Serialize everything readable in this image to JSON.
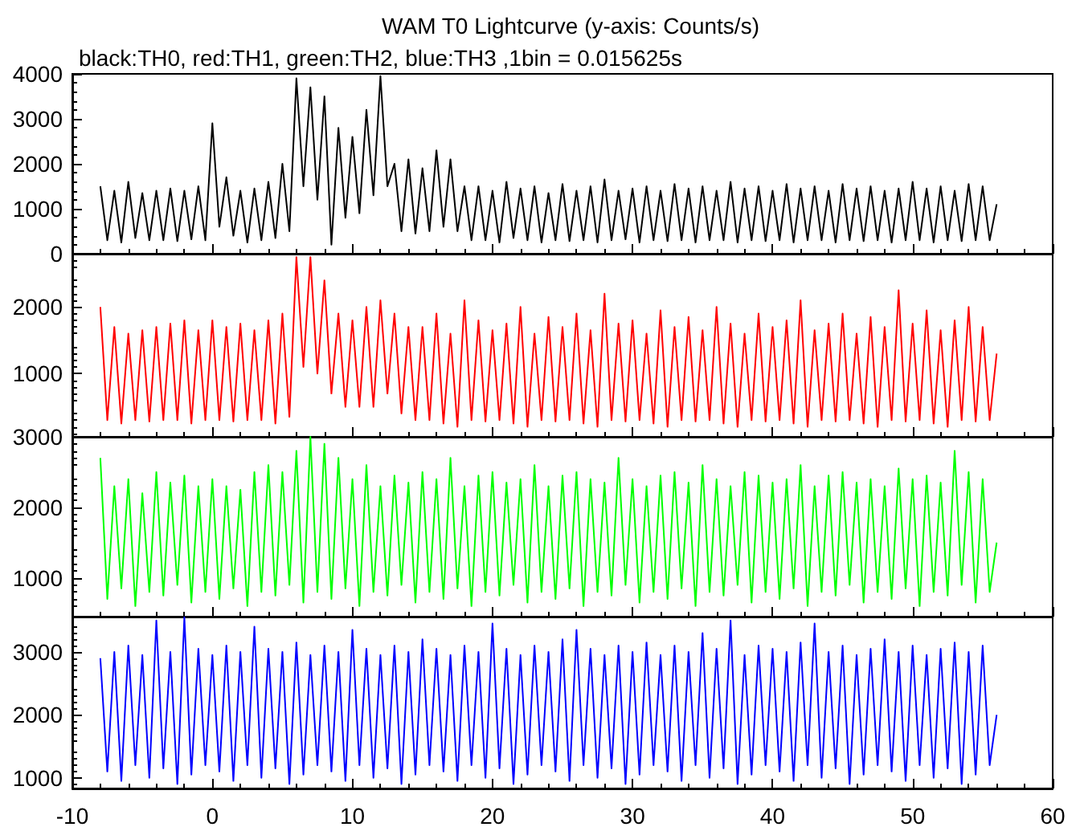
{
  "chart_data": [
    {
      "type": "line",
      "title": "WAM T0 Lightcurve (y-axis: Counts/s)",
      "subtitle": "black:TH0, red:TH1, green:TH2, blue:TH3 ,1bin = 0.015625s",
      "tick_labels": "y",
      "grid": false,
      "marker": "none",
      "x": [
        -8,
        -7.5,
        -7,
        -6.5,
        -6,
        -5.5,
        -5,
        -4.5,
        -4,
        -3.5,
        -3,
        -2.5,
        -2,
        -1.5,
        -1,
        -0.5,
        0,
        0.5,
        1,
        1.5,
        2,
        2.5,
        3,
        3.5,
        4,
        4.5,
        5,
        5.5,
        6,
        6.5,
        7,
        7.5,
        8,
        8.5,
        9,
        9.5,
        10,
        10.5,
        11,
        11.5,
        12,
        12.5,
        13,
        13.5,
        14,
        14.5,
        15,
        15.5,
        16,
        16.5,
        17,
        17.5,
        18,
        18.5,
        19,
        19.5,
        20,
        20.5,
        21,
        21.5,
        22,
        22.5,
        23,
        23.5,
        24,
        24.5,
        25,
        25.5,
        26,
        26.5,
        27,
        27.5,
        28,
        28.5,
        29,
        29.5,
        30,
        30.5,
        31,
        31.5,
        32,
        32.5,
        33,
        33.5,
        34,
        34.5,
        35,
        35.5,
        36,
        36.5,
        37,
        37.5,
        38,
        38.5,
        39,
        39.5,
        40,
        40.5,
        41,
        41.5,
        42,
        42.5,
        43,
        43.5,
        44,
        44.5,
        45,
        45.5,
        46,
        46.5,
        47,
        47.5,
        48,
        48.5,
        49,
        49.5,
        50,
        50.5,
        51,
        51.5,
        52,
        52.5,
        53,
        53.5,
        54,
        54.5,
        55,
        55.5,
        56
      ],
      "xlim": [
        -10,
        60
      ],
      "xticks": [
        -10,
        0,
        10,
        20,
        30,
        40,
        50,
        60
      ],
      "ylim": [
        0,
        4000
      ],
      "yticks": [
        0,
        1000,
        2000,
        3000,
        4000
      ],
      "series": [
        {
          "color": "#000000",
          "values": [
            1500,
            300,
            1400,
            250,
            1600,
            350,
            1350,
            300,
            1400,
            300,
            1450,
            280,
            1400,
            320,
            1500,
            300,
            2900,
            600,
            1700,
            400,
            1400,
            250,
            1450,
            300,
            1600,
            350,
            2000,
            500,
            3900,
            1500,
            3700,
            1200,
            3500,
            200,
            2800,
            800,
            2600,
            900,
            3200,
            1300,
            3950,
            1500,
            2000,
            500,
            2100,
            450,
            1900,
            500,
            2300,
            600,
            2100,
            500,
            1500,
            300,
            1500,
            300,
            1400,
            250,
            1600,
            350,
            1450,
            300,
            1500,
            250,
            1350,
            300,
            1550,
            280,
            1400,
            300,
            1500,
            250,
            1650,
            300,
            1400,
            320,
            1450,
            250,
            1500,
            300,
            1400,
            280,
            1550,
            300,
            1450,
            250,
            1500,
            300,
            1400,
            300,
            1600,
            250,
            1450,
            300,
            1500,
            280,
            1400,
            300,
            1550,
            250,
            1450,
            300,
            1500,
            300,
            1400,
            250,
            1550,
            300,
            1450,
            280,
            1500,
            300,
            1400,
            250,
            1450,
            300,
            1600,
            300,
            1450,
            250,
            1500,
            300,
            1400,
            280,
            1550,
            300,
            1500,
            300,
            1100
          ]
        }
      ]
    },
    {
      "type": "line",
      "tick_labels": "y",
      "grid": false,
      "marker": "none",
      "x": [
        -8,
        -7.5,
        -7,
        -6.5,
        -6,
        -5.5,
        -5,
        -4.5,
        -4,
        -3.5,
        -3,
        -2.5,
        -2,
        -1.5,
        -1,
        -0.5,
        0,
        0.5,
        1,
        1.5,
        2,
        2.5,
        3,
        3.5,
        4,
        4.5,
        5,
        5.5,
        6,
        6.5,
        7,
        7.5,
        8,
        8.5,
        9,
        9.5,
        10,
        10.5,
        11,
        11.5,
        12,
        12.5,
        13,
        13.5,
        14,
        14.5,
        15,
        15.5,
        16,
        16.5,
        17,
        17.5,
        18,
        18.5,
        19,
        19.5,
        20,
        20.5,
        21,
        21.5,
        22,
        22.5,
        23,
        23.5,
        24,
        24.5,
        25,
        25.5,
        26,
        26.5,
        27,
        27.5,
        28,
        28.5,
        29,
        29.5,
        30,
        30.5,
        31,
        31.5,
        32,
        32.5,
        33,
        33.5,
        34,
        34.5,
        35,
        35.5,
        36,
        36.5,
        37,
        37.5,
        38,
        38.5,
        39,
        39.5,
        40,
        40.5,
        41,
        41.5,
        42,
        42.5,
        43,
        43.5,
        44,
        44.5,
        45,
        45.5,
        46,
        46.5,
        47,
        47.5,
        48,
        48.5,
        49,
        49.5,
        50,
        50.5,
        51,
        51.5,
        52,
        52.5,
        53,
        53.5,
        54,
        54.5,
        55,
        55.5,
        56
      ],
      "xlim": [
        -10,
        60
      ],
      "xticks": [
        -10,
        0,
        10,
        20,
        30,
        40,
        50,
        60
      ],
      "ylim": [
        50,
        2800
      ],
      "yticks": [
        1000,
        2000
      ],
      "series": [
        {
          "color": "#ff0000",
          "values": [
            2000,
            300,
            1700,
            250,
            1600,
            300,
            1650,
            280,
            1700,
            300,
            1750,
            300,
            1800,
            250,
            1650,
            300,
            1800,
            300,
            1700,
            280,
            1750,
            300,
            1650,
            300,
            1800,
            250,
            1900,
            350,
            2750,
            1100,
            2750,
            1000,
            2400,
            700,
            1900,
            500,
            1800,
            500,
            2000,
            500,
            2100,
            700,
            1900,
            400,
            1700,
            300,
            1700,
            300,
            1900,
            250,
            1600,
            200,
            2100,
            300,
            1800,
            280,
            1650,
            300,
            1750,
            250,
            2000,
            200,
            1600,
            300,
            1850,
            280,
            1700,
            300,
            1900,
            250,
            1650,
            200,
            2200,
            300,
            1750,
            280,
            1800,
            300,
            1600,
            250,
            1950,
            200,
            1700,
            300,
            1850,
            280,
            1650,
            300,
            2000,
            250,
            1750,
            200,
            1600,
            300,
            1900,
            280,
            1700,
            300,
            1800,
            250,
            2100,
            200,
            1650,
            300,
            1750,
            280,
            1900,
            300,
            1600,
            250,
            1850,
            200,
            1700,
            300,
            2250,
            280,
            1750,
            300,
            1950,
            250,
            1650,
            200,
            1800,
            300,
            2000,
            280,
            1700,
            300,
            1300
          ]
        }
      ]
    },
    {
      "type": "line",
      "tick_labels": "y",
      "grid": false,
      "marker": "none",
      "x": [
        -8,
        -7.5,
        -7,
        -6.5,
        -6,
        -5.5,
        -5,
        -4.5,
        -4,
        -3.5,
        -3,
        -2.5,
        -2,
        -1.5,
        -1,
        -0.5,
        0,
        0.5,
        1,
        1.5,
        2,
        2.5,
        3,
        3.5,
        4,
        4.5,
        5,
        5.5,
        6,
        6.5,
        7,
        7.5,
        8,
        8.5,
        9,
        9.5,
        10,
        10.5,
        11,
        11.5,
        12,
        12.5,
        13,
        13.5,
        14,
        14.5,
        15,
        15.5,
        16,
        16.5,
        17,
        17.5,
        18,
        18.5,
        19,
        19.5,
        20,
        20.5,
        21,
        21.5,
        22,
        22.5,
        23,
        23.5,
        24,
        24.5,
        25,
        25.5,
        26,
        26.5,
        27,
        27.5,
        28,
        28.5,
        29,
        29.5,
        30,
        30.5,
        31,
        31.5,
        32,
        32.5,
        33,
        33.5,
        34,
        34.5,
        35,
        35.5,
        36,
        36.5,
        37,
        37.5,
        38,
        38.5,
        39,
        39.5,
        40,
        40.5,
        41,
        41.5,
        42,
        42.5,
        43,
        43.5,
        44,
        44.5,
        45,
        45.5,
        46,
        46.5,
        47,
        47.5,
        48,
        48.5,
        49,
        49.5,
        50,
        50.5,
        51,
        51.5,
        52,
        52.5,
        53,
        53.5,
        54,
        54.5,
        55,
        55.5,
        56
      ],
      "xlim": [
        -10,
        60
      ],
      "xticks": [
        -10,
        0,
        10,
        20,
        30,
        40,
        50,
        60
      ],
      "ylim": [
        450,
        3000
      ],
      "yticks": [
        1000,
        2000,
        3000
      ],
      "series": [
        {
          "color": "#00ff00",
          "values": [
            2700,
            700,
            2300,
            850,
            2400,
            600,
            2200,
            800,
            2500,
            750,
            2350,
            900,
            2450,
            650,
            2300,
            800,
            2400,
            700,
            2300,
            850,
            2250,
            600,
            2500,
            800,
            2600,
            750,
            2500,
            900,
            2800,
            650,
            3000,
            800,
            2900,
            700,
            2700,
            850,
            2400,
            600,
            2600,
            800,
            2300,
            750,
            2450,
            900,
            2350,
            650,
            2500,
            800,
            2400,
            700,
            2700,
            850,
            2300,
            600,
            2450,
            800,
            2500,
            750,
            2350,
            900,
            2400,
            650,
            2600,
            800,
            2300,
            700,
            2450,
            850,
            2500,
            600,
            2400,
            800,
            2350,
            750,
            2700,
            900,
            2400,
            650,
            2300,
            800,
            2450,
            700,
            2500,
            850,
            2350,
            600,
            2600,
            800,
            2400,
            750,
            2300,
            900,
            2500,
            650,
            2450,
            800,
            2350,
            700,
            2400,
            850,
            2600,
            600,
            2300,
            800,
            2450,
            750,
            2500,
            900,
            2350,
            650,
            2400,
            800,
            2300,
            700,
            2550,
            850,
            2400,
            600,
            2450,
            800,
            2350,
            750,
            2800,
            900,
            2500,
            650,
            2400,
            800,
            1500
          ]
        }
      ]
    },
    {
      "type": "line",
      "grid": false,
      "marker": "none",
      "x": [
        -8,
        -7.5,
        -7,
        -6.5,
        -6,
        -5.5,
        -5,
        -4.5,
        -4,
        -3.5,
        -3,
        -2.5,
        -2,
        -1.5,
        -1,
        -0.5,
        0,
        0.5,
        1,
        1.5,
        2,
        2.5,
        3,
        3.5,
        4,
        4.5,
        5,
        5.5,
        6,
        6.5,
        7,
        7.5,
        8,
        8.5,
        9,
        9.5,
        10,
        10.5,
        11,
        11.5,
        12,
        12.5,
        13,
        13.5,
        14,
        14.5,
        15,
        15.5,
        16,
        16.5,
        17,
        17.5,
        18,
        18.5,
        19,
        19.5,
        20,
        20.5,
        21,
        21.5,
        22,
        22.5,
        23,
        23.5,
        24,
        24.5,
        25,
        25.5,
        26,
        26.5,
        27,
        27.5,
        28,
        28.5,
        29,
        29.5,
        30,
        30.5,
        31,
        31.5,
        32,
        32.5,
        33,
        33.5,
        34,
        34.5,
        35,
        35.5,
        36,
        36.5,
        37,
        37.5,
        38,
        38.5,
        39,
        39.5,
        40,
        40.5,
        41,
        41.5,
        42,
        42.5,
        43,
        43.5,
        44,
        44.5,
        45,
        45.5,
        46,
        46.5,
        47,
        47.5,
        48,
        48.5,
        49,
        49.5,
        50,
        50.5,
        51,
        51.5,
        52,
        52.5,
        53,
        53.5,
        54,
        54.5,
        55,
        55.5,
        56
      ],
      "xlim": [
        -10,
        60
      ],
      "xticks": [
        -10,
        0,
        10,
        20,
        30,
        40,
        50,
        60
      ],
      "ylim": [
        830,
        3560
      ],
      "yticks": [
        1000,
        2000,
        3000
      ],
      "series": [
        {
          "color": "#0000ff",
          "values": [
            2900,
            1100,
            3000,
            950,
            3100,
            1200,
            2950,
            1000,
            3500,
            1150,
            3000,
            900,
            3550,
            1050,
            3050,
            1200,
            2950,
            1100,
            3100,
            950,
            3000,
            1200,
            3400,
            1000,
            3050,
            1150,
            3000,
            900,
            3150,
            1050,
            2950,
            1200,
            3100,
            1100,
            3000,
            950,
            3350,
            1200,
            3050,
            1000,
            2950,
            1150,
            3100,
            900,
            3000,
            1050,
            3200,
            1200,
            3050,
            1100,
            2950,
            950,
            3100,
            1200,
            3000,
            1000,
            3450,
            1150,
            3050,
            900,
            2950,
            1050,
            3100,
            1200,
            3000,
            1100,
            3200,
            950,
            3350,
            1200,
            3050,
            1000,
            2950,
            1150,
            3100,
            900,
            3000,
            1050,
            3150,
            1200,
            2950,
            1100,
            3100,
            950,
            3000,
            1200,
            3300,
            1000,
            3050,
            1150,
            3500,
            900,
            2950,
            1050,
            3100,
            1200,
            3050,
            1100,
            3000,
            950,
            3150,
            1200,
            3450,
            1000,
            3000,
            1150,
            3100,
            900,
            2950,
            1050,
            3050,
            1200,
            3200,
            1100,
            3000,
            950,
            3100,
            1200,
            2950,
            1000,
            3050,
            1150,
            3150,
            900,
            3000,
            1050,
            3100,
            1200,
            2000
          ]
        }
      ]
    }
  ]
}
